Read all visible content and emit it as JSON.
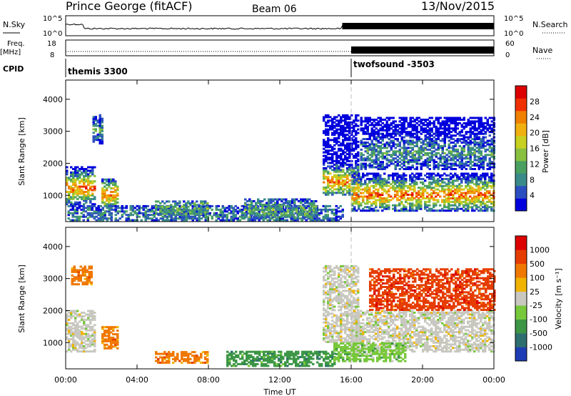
{
  "header": {
    "station": "Prince George (fitACF)",
    "beam": "Beam 06",
    "date": "13/Nov/2015"
  },
  "top_panels": {
    "nsky_label": "N.Sky",
    "nsky_ticks": [
      "10^5",
      "10^0"
    ],
    "nsearch_label": "N.Search",
    "nsearch_ticks": [
      "10^5",
      "10^0"
    ],
    "freq_label": "Freq.",
    "freq_unit": "[MHz]",
    "freq_ticks": [
      "18",
      "8"
    ],
    "nave_label": "Nave",
    "nave_ticks": [
      "60",
      "0"
    ],
    "cpid_label": "CPID",
    "cpid_segments": [
      {
        "name": "themis 3300",
        "start_h": 0
      },
      {
        "name": "twofsound -3503",
        "start_h": 16
      }
    ]
  },
  "x_axis": {
    "label": "Time UT",
    "ticks": [
      "00:00",
      "04:00",
      "08:00",
      "12:00",
      "16:00",
      "20:00",
      "00:00"
    ],
    "range_h": [
      0,
      24
    ]
  },
  "chart_data": [
    {
      "type": "heatmap",
      "name": "power",
      "ylabel": "Slant Range [km]",
      "ylim": [
        180,
        4600
      ],
      "yticks": [
        1000,
        2000,
        3000,
        4000
      ],
      "x_range_h": [
        0,
        24
      ],
      "colorbar": {
        "label": "Power [dB]",
        "ticks": [
          "28",
          "24",
          "20",
          "16",
          "12",
          "8",
          "4"
        ],
        "range": [
          0,
          32
        ],
        "colors": [
          "#0000dd",
          "#2b4fc0",
          "#3a8a8a",
          "#4aa060",
          "#88c040",
          "#c8d020",
          "#f0b010",
          "#f08000",
          "#f03000",
          "#dd0000"
        ]
      },
      "regions": [
        {
          "t0": 0.0,
          "t1": 1.6,
          "r0": 700,
          "r1": 1900,
          "peak_r": 1200,
          "peak_v": 26
        },
        {
          "t0": 1.5,
          "t1": 2.1,
          "r0": 2600,
          "r1": 3500,
          "peak_r": 3000,
          "peak_v": 10
        },
        {
          "t0": 2.0,
          "t1": 2.9,
          "r0": 700,
          "r1": 1500,
          "peak_r": 1000,
          "peak_v": 24
        },
        {
          "t0": 0.1,
          "t1": 15.5,
          "r0": 200,
          "r1": 650,
          "peak_r": 350,
          "peak_v": 8
        },
        {
          "t0": 5.0,
          "t1": 8.0,
          "r0": 400,
          "r1": 800,
          "peak_r": 550,
          "peak_v": 12
        },
        {
          "t0": 10.0,
          "t1": 14.0,
          "r0": 300,
          "r1": 900,
          "peak_r": 500,
          "peak_v": 12
        },
        {
          "t0": 14.4,
          "t1": 16.4,
          "r0": 1000,
          "r1": 3500,
          "peak_r": 1400,
          "peak_v": 24
        },
        {
          "t0": 16.0,
          "t1": 24.0,
          "r0": 500,
          "r1": 1700,
          "peak_r": 1000,
          "peak_v": 26
        },
        {
          "t0": 16.5,
          "t1": 24.0,
          "r0": 1800,
          "r1": 3400,
          "peak_r": 2300,
          "peak_v": 10
        }
      ]
    },
    {
      "type": "heatmap",
      "name": "velocity",
      "ylabel": "Slant Range [km]",
      "ylim": [
        180,
        4600
      ],
      "yticks": [
        1000,
        2000,
        3000,
        4000
      ],
      "x_range_h": [
        0,
        24
      ],
      "colorbar": {
        "label": "Velocity [m s⁻¹]",
        "ticks": [
          "1000",
          "500",
          "100",
          "25",
          "-25",
          "-100",
          "-500",
          "-1000"
        ],
        "colors": [
          "#1e3cb4",
          "#2d6e6e",
          "#3c9646",
          "#78c83c",
          "#c8c8c0",
          "#f0b400",
          "#f07800",
          "#e63c00",
          "#dc0000"
        ]
      },
      "regions": [
        {
          "t0": 0.0,
          "t1": 1.6,
          "r0": 700,
          "r1": 2000,
          "class": 4
        },
        {
          "t0": 0.3,
          "t1": 1.5,
          "r0": 2800,
          "r1": 3400,
          "class": 6
        },
        {
          "t0": 2.0,
          "t1": 2.9,
          "r0": 800,
          "r1": 1500,
          "class": 6
        },
        {
          "t0": 5.0,
          "t1": 8.0,
          "r0": 350,
          "r1": 700,
          "class": 6
        },
        {
          "t0": 9.0,
          "t1": 15.0,
          "r0": 250,
          "r1": 700,
          "class": 2
        },
        {
          "t0": 14.4,
          "t1": 16.4,
          "r0": 1000,
          "r1": 3400,
          "class": 4
        },
        {
          "t0": 16.0,
          "t1": 24.0,
          "r0": 700,
          "r1": 2000,
          "class": 4
        },
        {
          "t0": 17.0,
          "t1": 24.0,
          "r0": 2000,
          "r1": 3300,
          "class": 7
        },
        {
          "t0": 15.0,
          "t1": 19.0,
          "r0": 400,
          "r1": 1000,
          "class": 3
        }
      ]
    }
  ]
}
